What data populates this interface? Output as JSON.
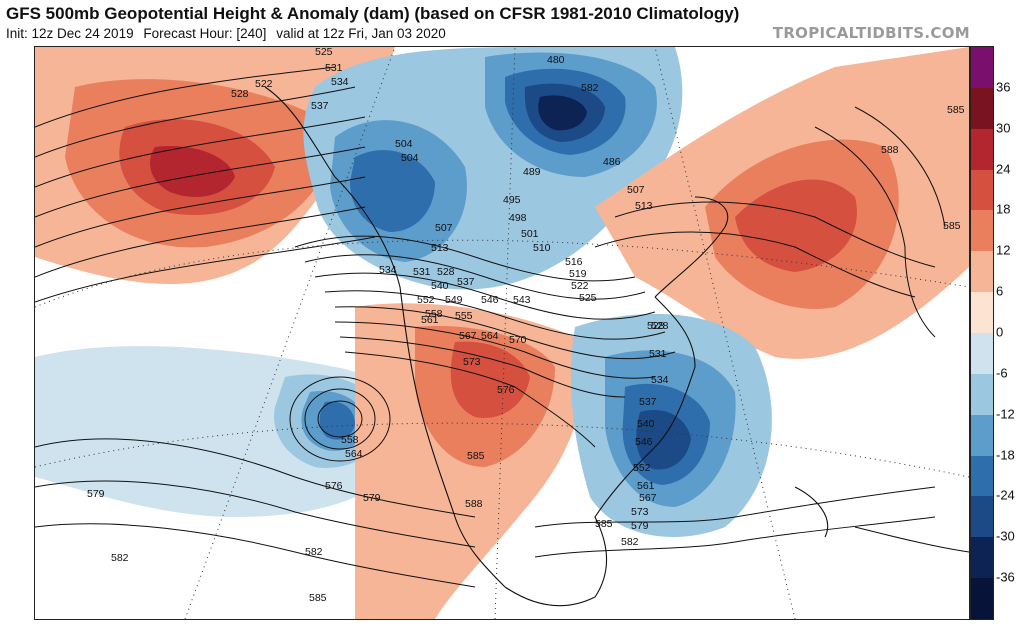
{
  "header": {
    "title": "GFS 500mb Geopotential Height & Anomaly (dam) (based on CFSR 1981-2010 Climatology)",
    "init": "Init: 12z Dec 24 2019",
    "forecast_hour": "Forecast Hour: [240]",
    "valid": "valid at 12z Fri, Jan 03 2020",
    "brand": "TROPICALTIDBITS.COM"
  },
  "colorbar": {
    "levels": [
      {
        "label": "36",
        "color": "#7a0f6e"
      },
      {
        "label": "30",
        "color": "#7a1320"
      },
      {
        "label": "24",
        "color": "#b4262f"
      },
      {
        "label": "18",
        "color": "#d5503f"
      },
      {
        "label": "12",
        "color": "#ea7f5e"
      },
      {
        "label": "6",
        "color": "#f6b596"
      },
      {
        "label": "0",
        "color": "#fde3d2"
      },
      {
        "label": "-6",
        "color": "#cfe3ef"
      },
      {
        "label": "-12",
        "color": "#9cc7e0"
      },
      {
        "label": "-18",
        "color": "#5d9dcb"
      },
      {
        "label": "-24",
        "color": "#2f6eac"
      },
      {
        "label": "-30",
        "color": "#1b4a86"
      },
      {
        "label": "-36",
        "color": "#0c2354"
      }
    ],
    "bottom_color": "#08133a"
  },
  "map": {
    "contour_labels": [
      {
        "text": "525"
      },
      {
        "text": "531"
      },
      {
        "text": "534"
      },
      {
        "text": "522"
      },
      {
        "text": "528"
      },
      {
        "text": "537"
      },
      {
        "text": "504"
      },
      {
        "text": "504"
      },
      {
        "text": "480"
      },
      {
        "text": "489"
      },
      {
        "text": "486"
      },
      {
        "text": "495"
      },
      {
        "text": "498"
      },
      {
        "text": "501"
      },
      {
        "text": "507"
      },
      {
        "text": "510"
      },
      {
        "text": "513"
      },
      {
        "text": "507"
      },
      {
        "text": "513"
      },
      {
        "text": "516"
      },
      {
        "text": "519"
      },
      {
        "text": "522"
      },
      {
        "text": "525"
      },
      {
        "text": "528"
      },
      {
        "text": "534"
      },
      {
        "text": "531"
      },
      {
        "text": "528"
      },
      {
        "text": "540"
      },
      {
        "text": "537"
      },
      {
        "text": "543"
      },
      {
        "text": "546"
      },
      {
        "text": "549"
      },
      {
        "text": "552"
      },
      {
        "text": "555"
      },
      {
        "text": "558"
      },
      {
        "text": "561"
      },
      {
        "text": "564"
      },
      {
        "text": "567"
      },
      {
        "text": "570"
      },
      {
        "text": "573"
      },
      {
        "text": "576"
      },
      {
        "text": "585"
      },
      {
        "text": "588"
      },
      {
        "text": "558"
      },
      {
        "text": "564"
      },
      {
        "text": "576"
      },
      {
        "text": "579"
      },
      {
        "text": "579"
      },
      {
        "text": "582"
      },
      {
        "text": "582"
      },
      {
        "text": "585"
      },
      {
        "text": "528"
      },
      {
        "text": "531"
      },
      {
        "text": "534"
      },
      {
        "text": "537"
      },
      {
        "text": "540"
      },
      {
        "text": "546"
      },
      {
        "text": "552"
      },
      {
        "text": "561"
      },
      {
        "text": "567"
      },
      {
        "text": "573"
      },
      {
        "text": "579"
      },
      {
        "text": "582"
      },
      {
        "text": "585"
      },
      {
        "text": "582"
      },
      {
        "text": "585"
      },
      {
        "text": "588"
      },
      {
        "text": "585"
      }
    ]
  }
}
